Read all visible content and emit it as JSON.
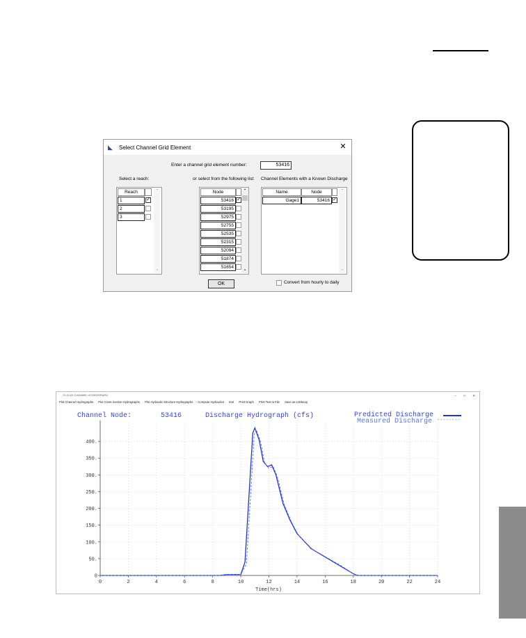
{
  "dialog": {
    "title": "Select Channel Grid Element",
    "close": "✕",
    "app_icon": "chart-icon",
    "enter_label": "Enter a channel grid element number:",
    "enter_value": "53416",
    "reach_label": "Select a reach:",
    "list_label": "or select from the following list:",
    "known_label": "Channel Elements with a Known Discharge",
    "reach_header": "Reach",
    "node_header": "Node",
    "name_header": "Name",
    "reaches": [
      {
        "label": "1",
        "checked": true
      },
      {
        "label": "2",
        "checked": false
      },
      {
        "label": "3",
        "checked": false
      }
    ],
    "nodes": [
      {
        "label": "53416",
        "checked": true
      },
      {
        "label": "53195",
        "checked": false
      },
      {
        "label": "52975",
        "checked": false
      },
      {
        "label": "52755",
        "checked": false
      },
      {
        "label": "52535",
        "checked": false
      },
      {
        "label": "52315",
        "checked": false
      },
      {
        "label": "52094",
        "checked": false
      },
      {
        "label": "51874",
        "checked": false
      },
      {
        "label": "51654",
        "checked": false
      }
    ],
    "known": [
      {
        "name": "Gage1",
        "node": "53416",
        "checked": true
      }
    ],
    "ok": "OK",
    "convert_label": "Convert from hourly to daily",
    "convert_checked": false,
    "check_mark": "✓",
    "scroll_up": "⌃",
    "scroll_down": "⌄"
  },
  "hydro": {
    "window_title": "FLO-2D CHANNEL HYDROGRAPH",
    "window_controls": [
      "–",
      "□",
      "✕"
    ],
    "menu": [
      "Plot Channel Hydrographs",
      "Plot Cross Section Hydrographs",
      "Plot Hydraulic Structure Hydrographs",
      "Compute Hydraulics",
      "Exit",
      "Print Graph",
      "Print Text to File",
      "Save as a Bitmap"
    ],
    "node_label": "Channel Node:",
    "node_value": "53416",
    "plot_title": "Discharge Hydrograph (cfs)",
    "legend_predicted": "Predicted Discharge",
    "legend_measured": "Measured Discharge",
    "legend_measured_line": "--------",
    "xlabel": "Time(hrs)"
  },
  "colors": {
    "predicted": "#2233cc",
    "measured": "#5577ee",
    "text_blue": "#3344dd",
    "gray_tab": "#8c8c8c"
  },
  "chart_data": {
    "type": "line",
    "title": "Discharge Hydrograph (cfs)",
    "xlabel": "Time(hrs)",
    "ylabel": "",
    "xlim": [
      0,
      24
    ],
    "ylim": [
      0,
      450
    ],
    "x_ticks": [
      "0",
      "2",
      "4",
      "6",
      "8",
      "10",
      "12",
      "14",
      "16",
      "18",
      "20",
      "22",
      "24"
    ],
    "y_ticks": [
      "0",
      "50.",
      "100.",
      "150.",
      "200.",
      "250.",
      "300.",
      "350.",
      "400."
    ],
    "grid": true,
    "legend": "top-right",
    "series": [
      {
        "name": "Predicted Discharge",
        "style": "solid",
        "x": [
          0,
          8.5,
          9,
          9.5,
          10,
          10.3,
          10.6,
          10.85,
          11.0,
          11.3,
          11.6,
          11.9,
          12.2,
          12.5,
          13.0,
          13.5,
          14.0,
          15.0,
          16.0,
          17.0,
          18.0,
          18.3,
          24
        ],
        "y": [
          0,
          0,
          3,
          3,
          3,
          40,
          250,
          425,
          440,
          405,
          340,
          325,
          330,
          300,
          215,
          165,
          125,
          80,
          55,
          30,
          5,
          0,
          0
        ]
      },
      {
        "name": "Measured Discharge",
        "style": "dashed",
        "x": [
          0,
          8.5,
          9,
          9.5,
          10,
          10.4,
          10.7,
          10.95,
          11.1,
          11.4,
          11.7,
          12.0,
          12.3,
          12.6,
          13.1,
          13.6,
          14.1,
          15.1,
          16.1,
          17.1,
          18.0,
          18.3,
          24
        ],
        "y": [
          0,
          0,
          3,
          3,
          3,
          35,
          240,
          420,
          435,
          400,
          335,
          320,
          325,
          295,
          210,
          160,
          120,
          78,
          54,
          30,
          5,
          0,
          0
        ]
      }
    ]
  }
}
